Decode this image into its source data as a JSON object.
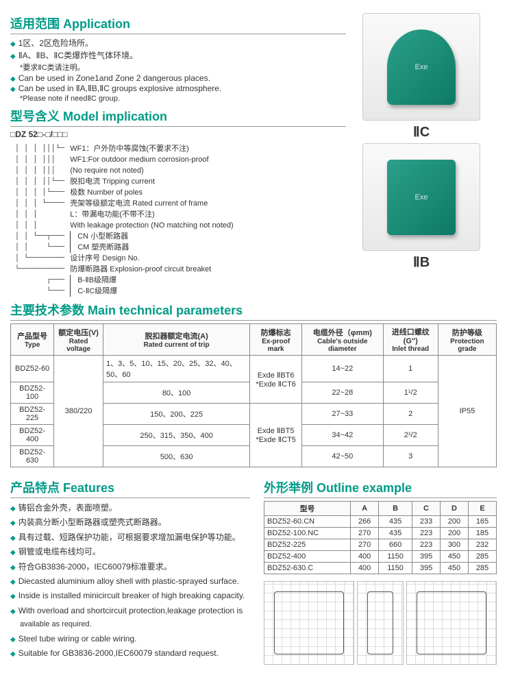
{
  "sections": {
    "application": "适用范围 Application",
    "model": "型号含义 Model implication",
    "params": "主要技术参数 Main technical parameters",
    "features": "产品特点 Features",
    "outline": "外形举例 Outline example"
  },
  "application_items": [
    "1区、2区危险场所。",
    "ⅡA、ⅡB、ⅡC类爆炸性气体环境。",
    "*要求ⅡC类请注明。",
    "Can be used in  Zone1and Zone 2 dangerous places.",
    "Can be used in ⅡA,ⅡB,ⅡC groups  explosive atmosphere.",
    "*Please note if needⅡC group."
  ],
  "products": [
    {
      "label": "ⅡC"
    },
    {
      "label": "ⅡB"
    }
  ],
  "model_code": "□DZ 52□-□/□□□",
  "model_lines": [
    "WF1：户外防中等腐蚀(不要求不注)",
    "WF1:For outdoor medium corrosion-proof",
    "(No require not noted)",
    "脱扣电流 Tripping current",
    "极数 Number of poles",
    "壳架等级额定电流 Rated current of frame",
    "L：带漏电功能(不带不注)",
    "With leakage protection (NO matching not noted)",
    "CN 小型断路器",
    "CM 塑壳断路器",
    "设计序号 Design No.",
    "防爆断路器 Explosion-proof circuit breaket",
    "B-ⅡB级隔爆",
    "C-ⅡC级隔爆"
  ],
  "params_header": [
    {
      "cn": "产品型号",
      "en": "Type"
    },
    {
      "cn": "额定电压(V)",
      "en": "Rated voltage"
    },
    {
      "cn": "脱扣器额定电流(A)",
      "en": "Rated current of trip"
    },
    {
      "cn": "防爆标志",
      "en": "Ex-proof mark"
    },
    {
      "cn": "电缆外径（φmm)",
      "en": "Cable's outside diameter"
    },
    {
      "cn": "进线口螺纹(G\")",
      "en": "Inlet thread"
    },
    {
      "cn": "防护等级",
      "en": "Protection grade"
    }
  ],
  "params_rated_voltage": "380/220",
  "params_exmark_1": "Exde ⅡBT6\n*Exde ⅡCT6",
  "params_exmark_2": "Exde ⅡBT5\n*Exde ⅡCT5",
  "params_protection": "IP55",
  "params_rows": [
    {
      "type": "BDZ52-60",
      "current": "1、3、5、10、15、20、25、32、40、50、60",
      "cable": "14~22",
      "inlet": "1"
    },
    {
      "type": "BDZ52-100",
      "current": "80、100",
      "cable": "22~28",
      "inlet": "1¹/2"
    },
    {
      "type": "BDZ52-225",
      "current": "150、200、225",
      "cable": "27~33",
      "inlet": "2"
    },
    {
      "type": "BDZ52-400",
      "current": "250、315、350、400",
      "cable": "34~42",
      "inlet": "2¹/2"
    },
    {
      "type": "BDZ52-630",
      "current": "500、630",
      "cable": "42~50",
      "inlet": "3"
    }
  ],
  "features_items": [
    "铸铝合金外壳，表面喷塑。",
    "内装高分断小型断路器或塑壳式断路器。",
    "具有过载、短路保护功能，可根据要求增加漏电保护等功能。",
    "钢管或电缆布线均可。",
    "符合GB3836-2000，IEC60079标准要求。",
    "Diecasted aluminium alloy shell with plastic-sprayed surface.",
    "Inside is installed minicircuit breaker of high breaking capacity.",
    "With overload and shortcircuit protection,leakage protection is",
    "available as required.",
    "Steel tube wiring or cable wiring.",
    "Suitable for GB3836-2000,IEC60079 standard request."
  ],
  "outline_header": [
    "型号",
    "A",
    "B",
    "C",
    "D",
    "E"
  ],
  "outline_rows": [
    [
      "BDZ52-60.CN",
      "266",
      "435",
      "233",
      "200",
      "165"
    ],
    [
      "BDZ52-100.NC",
      "270",
      "435",
      "223",
      "200",
      "185"
    ],
    [
      "BDZ52-225",
      "270",
      "660",
      "223",
      "300",
      "232"
    ],
    [
      "BDZ52-400",
      "400",
      "1150",
      "395",
      "450",
      "285"
    ],
    [
      "BDZ52-630.C",
      "400",
      "1150",
      "395",
      "450",
      "285"
    ]
  ],
  "colors": {
    "accent": "#009b87"
  }
}
